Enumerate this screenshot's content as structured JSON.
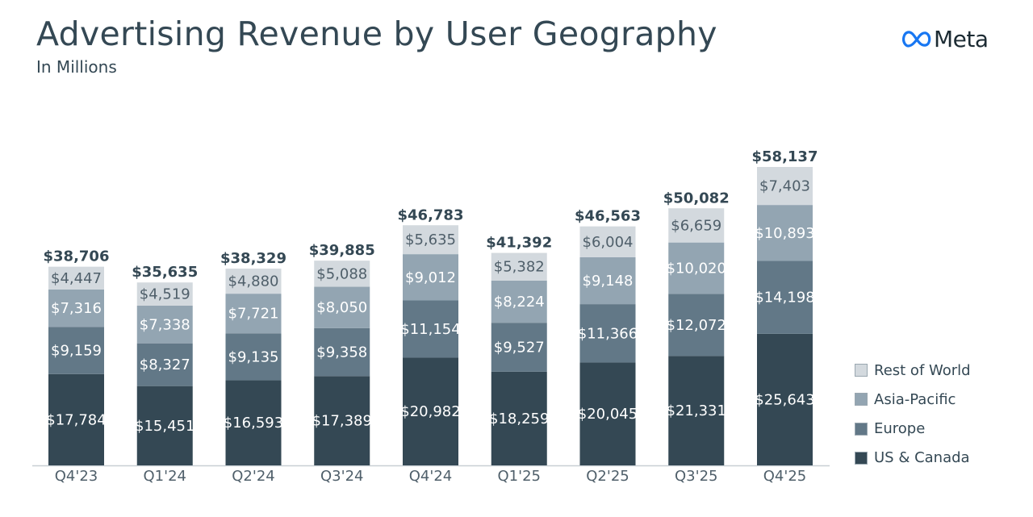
{
  "header": {
    "title": "Advertising Revenue by User Geography",
    "subtitle": "In Millions",
    "brand": "Meta"
  },
  "colors": {
    "us_canada": "#344854",
    "europe": "#627887",
    "asia_pacific": "#93a5b2",
    "rest_of_world": "#d3d9de",
    "text_dark": "#344854",
    "axis": "#c8cfd4"
  },
  "legend": {
    "items": [
      {
        "label": "Rest of World",
        "color": "#d3d9de"
      },
      {
        "label": "Asia-Pacific",
        "color": "#93a5b2"
      },
      {
        "label": "Europe",
        "color": "#627887"
      },
      {
        "label": "US & Canada",
        "color": "#344854"
      }
    ]
  },
  "chart_data": {
    "type": "bar",
    "stacked": true,
    "title": "Advertising Revenue by User Geography",
    "subtitle": "In Millions",
    "categories": [
      "Q4'23",
      "Q1'24",
      "Q2'24",
      "Q3'24",
      "Q4'24",
      "Q1'25",
      "Q2'25",
      "Q3'25",
      "Q4'25"
    ],
    "series": [
      {
        "name": "US & Canada",
        "color": "#344854",
        "values": [
          17784,
          15451,
          16593,
          17389,
          20982,
          18259,
          20045,
          21331,
          25643
        ],
        "labels": [
          "$17,784",
          "$15,451",
          "$16,593",
          "$17,389",
          "$20,982",
          "$18,259",
          "$20,045",
          "$21,331",
          "$25,643"
        ]
      },
      {
        "name": "Europe",
        "color": "#627887",
        "values": [
          9159,
          8327,
          9135,
          9358,
          11154,
          9527,
          11366,
          12072,
          14198
        ],
        "labels": [
          "$9,159",
          "$8,327",
          "$9,135",
          "$9,358",
          "$11,154",
          "$9,527",
          "$11,366",
          "$12,072",
          "$14,198"
        ]
      },
      {
        "name": "Asia-Pacific",
        "color": "#93a5b2",
        "values": [
          7316,
          7338,
          7721,
          8050,
          9012,
          8224,
          9148,
          10020,
          10893
        ],
        "labels": [
          "$7,316",
          "$7,338",
          "$7,721",
          "$8,050",
          "$9,012",
          "$8,224",
          "$9,148",
          "$10,020",
          "$10,893"
        ]
      },
      {
        "name": "Rest of World",
        "color": "#d3d9de",
        "values": [
          4447,
          4519,
          4880,
          5088,
          5635,
          5382,
          6004,
          6659,
          7403
        ],
        "labels": [
          "$4,447",
          "$4,519",
          "$4,880",
          "$5,088",
          "$5,635",
          "$5,382",
          "$6,004",
          "$6,659",
          "$7,403"
        ]
      }
    ],
    "totals": [
      38706,
      35635,
      38329,
      39885,
      46783,
      41392,
      46563,
      50082,
      58137
    ],
    "total_labels": [
      "$38,706",
      "$35,635",
      "$38,329",
      "$39,885",
      "$46,783",
      "$41,392",
      "$46,563",
      "$50,082",
      "$58,137"
    ],
    "ylim": [
      0,
      58137
    ],
    "grid": false,
    "legend_position": "bottom-right"
  }
}
